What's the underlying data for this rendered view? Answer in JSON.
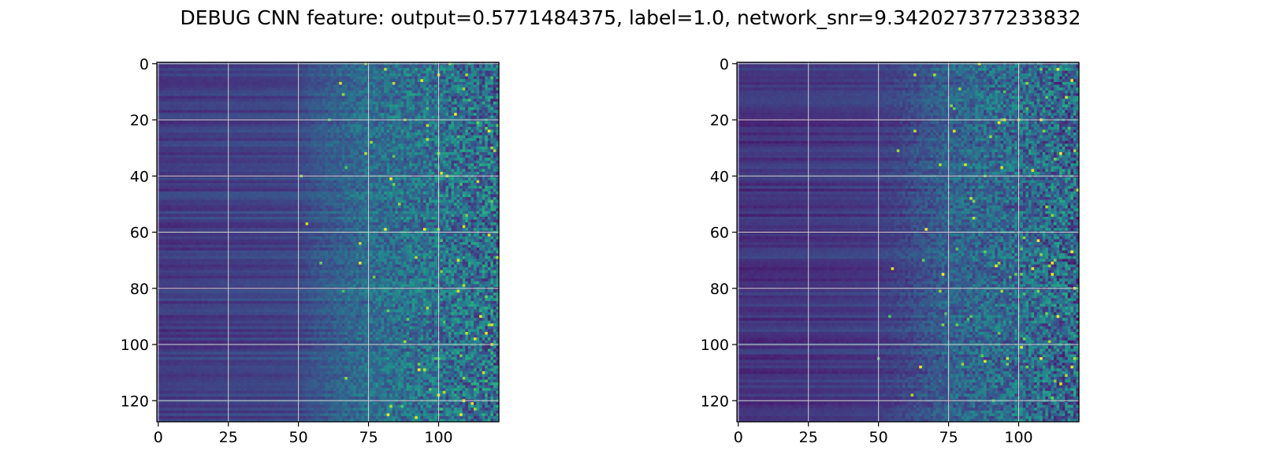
{
  "figure": {
    "title": "DEBUG CNN feature: output=0.5771484375, label=1.0, network_snr=9.342027377233832"
  },
  "style": {
    "colormap": "viridis",
    "grid_color": "#d0d0d0",
    "axis_color": "#000000"
  },
  "chart_data": [
    {
      "type": "heatmap",
      "panel": "left",
      "title": "",
      "xlabel": "",
      "ylabel": "",
      "shape": [
        128,
        122
      ],
      "xlim": [
        -0.5,
        121.5
      ],
      "ylim": [
        127.5,
        -0.5
      ],
      "xticks": [
        0,
        25,
        50,
        75,
        100
      ],
      "yticks": [
        0,
        20,
        40,
        60,
        80,
        100,
        120
      ],
      "grid": true,
      "value_range": [
        0,
        1
      ],
      "column_profile": {
        "x": [
          0,
          25,
          50,
          55,
          75,
          95,
          121
        ],
        "mean_level": [
          0.17,
          0.19,
          0.21,
          0.26,
          0.38,
          0.4,
          0.4
        ]
      },
      "notes_visible": "low uniform row-banded values for x<50, increasingly noisy speckle with occasional yellow peaks for x>70",
      "peak_value": 1.0
    },
    {
      "type": "heatmap",
      "panel": "right",
      "title": "",
      "xlabel": "",
      "ylabel": "",
      "shape": [
        128,
        122
      ],
      "xlim": [
        -0.5,
        121.5
      ],
      "ylim": [
        127.5,
        -0.5
      ],
      "xticks": [
        0,
        25,
        50,
        75,
        100
      ],
      "yticks": [
        0,
        20,
        40,
        60,
        80,
        100,
        120
      ],
      "grid": true,
      "value_range": [
        0,
        1
      ],
      "column_profile": {
        "x": [
          0,
          25,
          50,
          60,
          75,
          95,
          121
        ],
        "mean_level": [
          0.15,
          0.16,
          0.18,
          0.22,
          0.33,
          0.37,
          0.37
        ]
      },
      "peak_value": 1.0
    }
  ]
}
